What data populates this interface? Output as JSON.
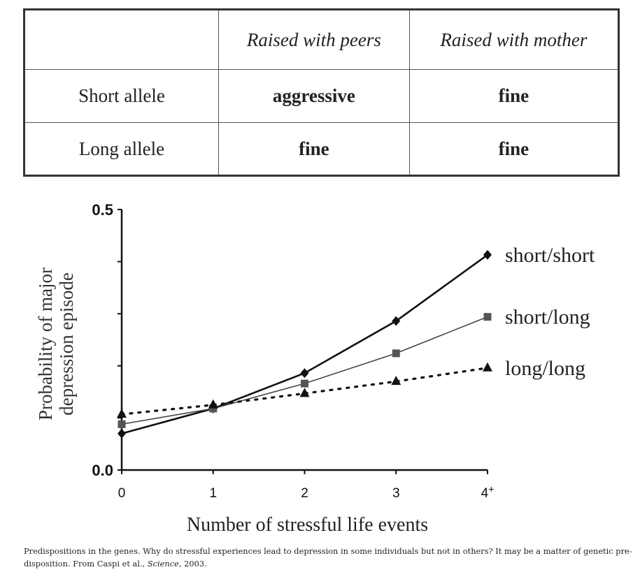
{
  "table": {
    "header": [
      "",
      "Raised with peers",
      "Raised with mother"
    ],
    "rows": [
      {
        "label": "Short allele",
        "cells": [
          "aggressive",
          "fine"
        ]
      },
      {
        "label": "Long allele",
        "cells": [
          "fine",
          "fine"
        ]
      }
    ]
  },
  "chart_data": {
    "type": "line",
    "title": "",
    "xlabel": "Number of stressful life events",
    "ylabel_lines": [
      "Probability of major",
      "depression episode"
    ],
    "categories": [
      "0",
      "1",
      "2",
      "3",
      "4+"
    ],
    "x": [
      0,
      1,
      2,
      3,
      4
    ],
    "ylim": [
      0.0,
      0.5
    ],
    "y_tick_labels": [
      "0.0",
      "0.5"
    ],
    "y_minor_ticks": [
      0.1,
      0.2,
      0.3,
      0.4
    ],
    "grid": false,
    "legend": "inline-right",
    "series": [
      {
        "name": "short/short",
        "marker": "diamond",
        "line": "solid-thick",
        "color": "#111111",
        "values": [
          0.07,
          0.118,
          0.186,
          0.286,
          0.413
        ]
      },
      {
        "name": "short/long",
        "marker": "square",
        "line": "solid-thin",
        "color": "#555555",
        "values": [
          0.088,
          0.118,
          0.166,
          0.224,
          0.294
        ]
      },
      {
        "name": "long/long",
        "marker": "triangle",
        "line": "dotted",
        "color": "#111111",
        "values": [
          0.107,
          0.125,
          0.147,
          0.17,
          0.196
        ]
      }
    ]
  },
  "caption": {
    "text_before": "Predispositions in the genes. Why do stressful experiences lead to depression in some individuals but not in others? It may be a matter of genetic pre-disposition. From Caspi et al., ",
    "italic": "Science",
    "text_after": ", 2003."
  }
}
